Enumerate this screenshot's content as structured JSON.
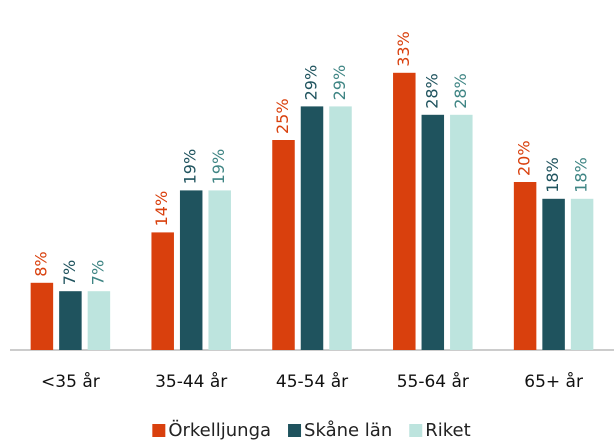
{
  "chart_data": {
    "type": "bar",
    "categories": [
      "<35 år",
      "35-44 år",
      "45-54 år",
      "55-64 år",
      "65+ år"
    ],
    "series": [
      {
        "name": "Örkelljunga",
        "color": "#d9400d",
        "label_color": "#d9400d",
        "values": [
          8,
          14,
          25,
          33,
          20
        ],
        "value_labels": [
          "8%",
          "14%",
          "25%",
          "33%",
          "20%"
        ]
      },
      {
        "name": "Skåne län",
        "color": "#1f535e",
        "label_color": "#1f535e",
        "values": [
          7,
          19,
          29,
          28,
          18
        ],
        "value_labels": [
          "7%",
          "19%",
          "29%",
          "28%",
          "18%"
        ]
      },
      {
        "name": "Riket",
        "color": "#bde4de",
        "label_color": "#3f8584",
        "values": [
          7,
          19,
          29,
          28,
          18
        ],
        "value_labels": [
          "7%",
          "19%",
          "29%",
          "28%",
          "18%"
        ]
      }
    ],
    "legend": "bottom"
  }
}
